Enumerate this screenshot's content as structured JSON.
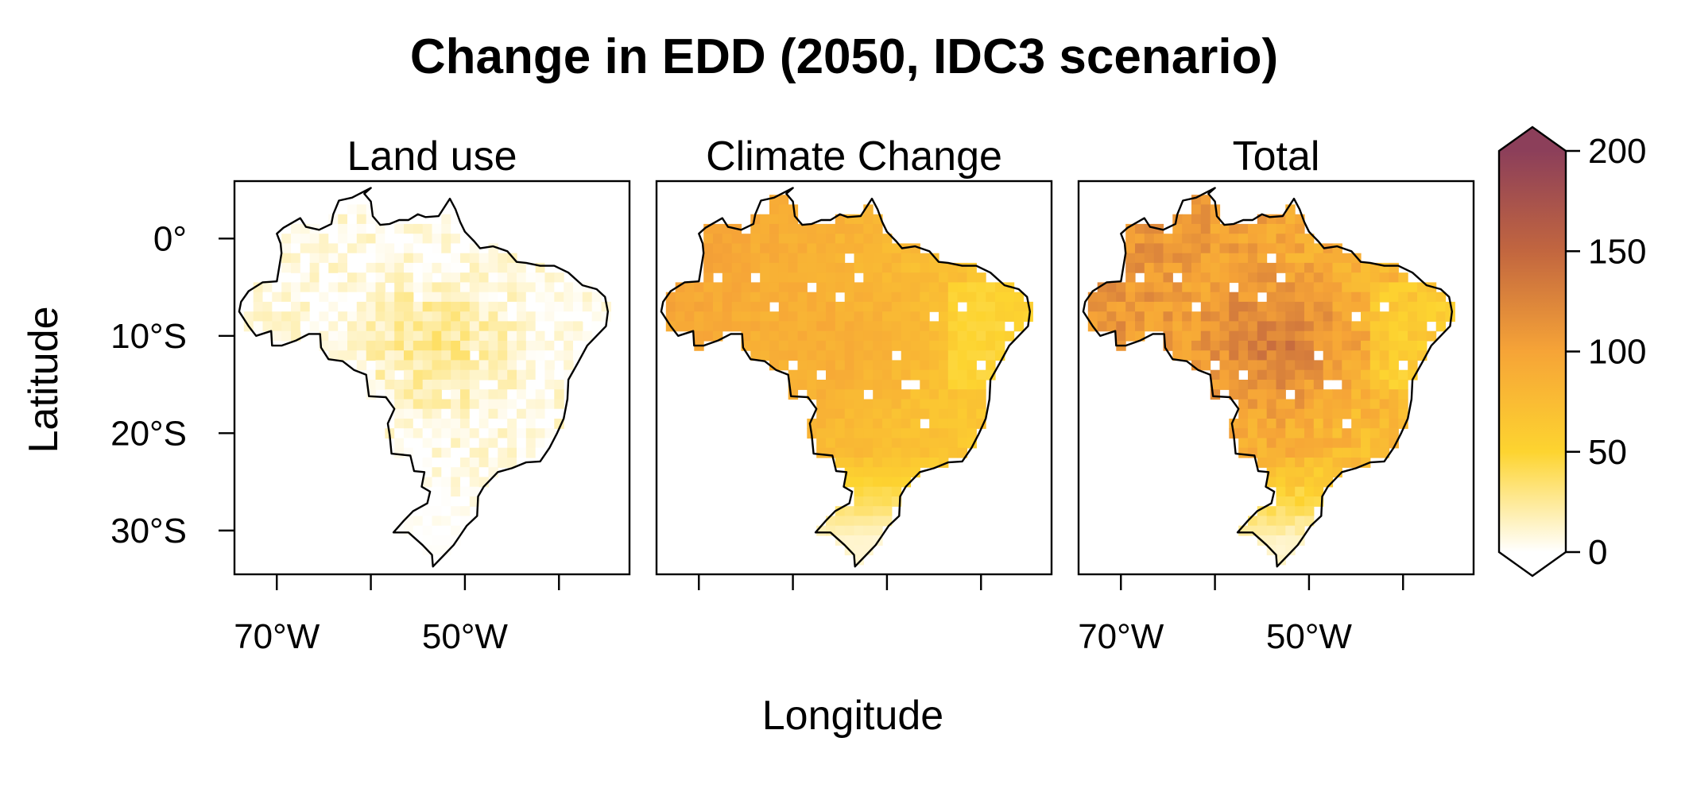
{
  "title": "Change in EDD (2050, IDC3 scenario)",
  "axes": {
    "xlabel": "Longitude",
    "ylabel": "Latitude",
    "x_ticks": [
      {
        "value": -70,
        "label": "70°W"
      },
      {
        "value": -60,
        "label": ""
      },
      {
        "value": -50,
        "label": "50°W"
      },
      {
        "value": -40,
        "label": ""
      }
    ],
    "y_ticks": [
      {
        "value": 0,
        "label": "0°"
      },
      {
        "value": -10,
        "label": "10°S"
      },
      {
        "value": -20,
        "label": "20°S"
      },
      {
        "value": -30,
        "label": "30°S"
      }
    ],
    "lon_range": [
      -74.5,
      -32.5
    ],
    "lat_range": [
      -34.5,
      5.9
    ]
  },
  "panels": [
    {
      "id": "land-use",
      "title": "Land use",
      "show_x_tick_labels": true,
      "show_y_tick_labels": true,
      "field": {
        "base": 6,
        "west": 0,
        "north": 0,
        "central": 26,
        "noise": 12,
        "gaps": 0.03
      }
    },
    {
      "id": "climate-change",
      "title": "Climate Change",
      "show_x_tick_labels": false,
      "show_y_tick_labels": false,
      "field": {
        "base": 62,
        "west": 28,
        "north": 10,
        "central": 12,
        "noise": 7,
        "gaps": 0.03
      }
    },
    {
      "id": "total",
      "title": "Total",
      "show_x_tick_labels": true,
      "show_y_tick_labels": false,
      "field": {
        "base": 74,
        "west": 30,
        "north": 12,
        "central": 42,
        "noise": 16,
        "gaps": 0.03
      }
    }
  ],
  "colorbar": {
    "min": 0,
    "max": 200,
    "ticks": [
      {
        "value": 0,
        "label": "0"
      },
      {
        "value": 50,
        "label": "50"
      },
      {
        "value": 100,
        "label": "100"
      },
      {
        "value": 150,
        "label": "150"
      },
      {
        "value": 200,
        "label": "200"
      }
    ],
    "extend": "both",
    "colors": [
      {
        "at": 0,
        "color": "#ffffff"
      },
      {
        "at": 50,
        "color": "#fdd430"
      },
      {
        "at": 100,
        "color": "#f6a437"
      },
      {
        "at": 150,
        "color": "#c2663f"
      },
      {
        "at": 200,
        "color": "#8c3f5a"
      }
    ]
  },
  "chart_data": {
    "type": "heatmap",
    "title": "Change in EDD (2050, IDC3 scenario)",
    "xlabel": "Longitude",
    "ylabel": "Latitude",
    "facets": [
      "Land use",
      "Climate Change",
      "Total"
    ],
    "region": "Brazil",
    "value_range": [
      0,
      200
    ],
    "approx_mean_values": {
      "Land use": 15,
      "Climate Change": 65,
      "Total": 85
    }
  },
  "brazil_outline": [
    [
      -60.0,
      5.2
    ],
    [
      -60.7,
      4.6
    ],
    [
      -60.0,
      3.8
    ],
    [
      -59.8,
      2.3
    ],
    [
      -59.0,
      1.4
    ],
    [
      -58.0,
      1.5
    ],
    [
      -57.0,
      1.9
    ],
    [
      -56.0,
      1.9
    ],
    [
      -55.0,
      2.5
    ],
    [
      -54.2,
      2.2
    ],
    [
      -52.8,
      2.3
    ],
    [
      -51.6,
      4.1
    ],
    [
      -51.0,
      3.0
    ],
    [
      -50.5,
      1.7
    ],
    [
      -50.0,
      0.7
    ],
    [
      -49.0,
      -0.3
    ],
    [
      -48.4,
      -1.0
    ],
    [
      -47.0,
      -0.8
    ],
    [
      -45.5,
      -1.3
    ],
    [
      -44.5,
      -2.4
    ],
    [
      -43.5,
      -2.5
    ],
    [
      -42.0,
      -2.8
    ],
    [
      -40.5,
      -2.8
    ],
    [
      -39.0,
      -3.5
    ],
    [
      -37.5,
      -4.8
    ],
    [
      -36.0,
      -5.2
    ],
    [
      -35.1,
      -6.0
    ],
    [
      -34.8,
      -7.5
    ],
    [
      -35.0,
      -9.0
    ],
    [
      -36.0,
      -10.0
    ],
    [
      -37.0,
      -11.0
    ],
    [
      -38.0,
      -12.8
    ],
    [
      -39.0,
      -14.5
    ],
    [
      -39.1,
      -16.5
    ],
    [
      -39.5,
      -18.5
    ],
    [
      -40.2,
      -20.0
    ],
    [
      -41.0,
      -21.5
    ],
    [
      -42.0,
      -22.9
    ],
    [
      -43.5,
      -23.0
    ],
    [
      -45.0,
      -23.6
    ],
    [
      -46.5,
      -24.0
    ],
    [
      -48.0,
      -25.5
    ],
    [
      -48.6,
      -26.5
    ],
    [
      -48.7,
      -28.5
    ],
    [
      -49.8,
      -29.5
    ],
    [
      -50.5,
      -30.5
    ],
    [
      -51.2,
      -31.5
    ],
    [
      -52.2,
      -32.5
    ],
    [
      -53.4,
      -33.7
    ],
    [
      -53.5,
      -32.5
    ],
    [
      -54.5,
      -31.5
    ],
    [
      -56.0,
      -30.2
    ],
    [
      -57.6,
      -30.2
    ],
    [
      -56.5,
      -29.0
    ],
    [
      -55.5,
      -28.0
    ],
    [
      -54.0,
      -27.2
    ],
    [
      -53.7,
      -26.0
    ],
    [
      -54.6,
      -25.5
    ],
    [
      -54.3,
      -24.0
    ],
    [
      -55.4,
      -23.9
    ],
    [
      -55.8,
      -22.3
    ],
    [
      -57.8,
      -22.1
    ],
    [
      -58.0,
      -20.2
    ],
    [
      -58.2,
      -19.0
    ],
    [
      -57.5,
      -17.5
    ],
    [
      -58.4,
      -16.3
    ],
    [
      -60.2,
      -16.2
    ],
    [
      -60.5,
      -14.0
    ],
    [
      -61.8,
      -13.5
    ],
    [
      -63.0,
      -12.6
    ],
    [
      -64.5,
      -12.4
    ],
    [
      -65.3,
      -11.2
    ],
    [
      -65.4,
      -9.8
    ],
    [
      -66.6,
      -9.8
    ],
    [
      -68.0,
      -10.5
    ],
    [
      -69.5,
      -11.0
    ],
    [
      -70.5,
      -11.0
    ],
    [
      -70.6,
      -9.5
    ],
    [
      -72.2,
      -10.0
    ],
    [
      -73.0,
      -9.0
    ],
    [
      -74.0,
      -7.5
    ],
    [
      -73.8,
      -6.5
    ],
    [
      -73.0,
      -5.4
    ],
    [
      -71.5,
      -4.5
    ],
    [
      -70.0,
      -4.4
    ],
    [
      -69.5,
      -1.5
    ],
    [
      -69.6,
      -0.5
    ],
    [
      -70.0,
      0.5
    ],
    [
      -69.3,
      1.1
    ],
    [
      -67.5,
      2.1
    ],
    [
      -66.9,
      1.2
    ],
    [
      -65.5,
      0.9
    ],
    [
      -64.2,
      1.5
    ],
    [
      -64.0,
      2.5
    ],
    [
      -63.4,
      3.9
    ],
    [
      -62.0,
      4.2
    ],
    [
      -60.0,
      5.2
    ]
  ]
}
